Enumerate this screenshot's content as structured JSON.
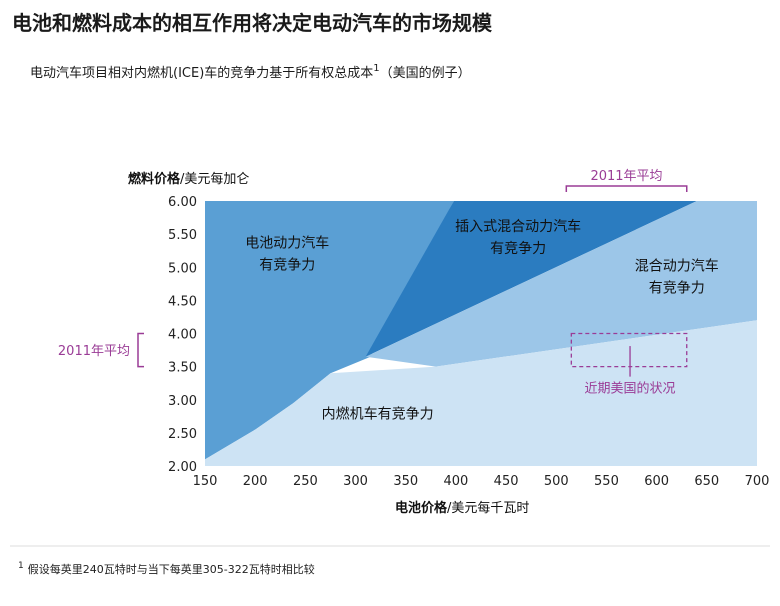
{
  "title": "电池和燃料成本的相互作用将决定电动汽车的市场规模",
  "subtitle": "电动汽车项目相对内燃机(ICE)车的竞争力基于所有权总成本",
  "subtitle_sup": "1",
  "subtitle_suffix": "（美国的例子）",
  "footnote_sup": "1",
  "footnote": "假设每英里240瓦特时与当下每英里305-322瓦特时相比较",
  "colors": {
    "ev": "#5a9fd4",
    "phev": "#2b7cc0",
    "hybrid": "#9cc6e8",
    "ice": "#cde3f4",
    "annotation": "#9a3c96"
  },
  "chart_data": {
    "type": "area",
    "xlabel_bold": "电池价格",
    "xlabel_rest": "/美元每千瓦时",
    "ylabel_bold": "燃料价格",
    "ylabel_rest": "/美元每加仑",
    "xlim": [
      150,
      700
    ],
    "ylim": [
      2.0,
      6.0
    ],
    "x_ticks": [
      "150",
      "200",
      "250",
      "300",
      "350",
      "400",
      "450",
      "500",
      "550",
      "600",
      "650",
      "700"
    ],
    "y_ticks": [
      "2.00",
      "2.50",
      "3.00",
      "3.50",
      "4.00",
      "4.50",
      "5.00",
      "5.50",
      "6.00"
    ],
    "regions": [
      {
        "name": "电动汽车竞争",
        "label_lines": [
          "电池动力汽车",
          "有竞争力"
        ],
        "label_at": [
          232,
          5.3
        ],
        "polygon": [
          [
            150,
            6.0
          ],
          [
            150,
            2.1
          ],
          [
            200,
            2.55
          ],
          [
            238,
            2.95
          ],
          [
            275,
            3.4
          ],
          [
            315,
            3.65
          ],
          [
            398,
            6.0
          ]
        ]
      },
      {
        "name": "插电式混合动力汽车具有竞争力",
        "label_lines": [
          "插入式混合动力汽车",
          "有竞争力"
        ],
        "label_at": [
          462,
          5.55
        ],
        "polygon": [
          [
            398,
            6.0
          ],
          [
            640,
            6.0
          ],
          [
            310,
            3.65
          ]
        ]
      },
      {
        "name": "混合动力汽车竞争",
        "label_lines": [
          "混合动力汽车",
          "有竞争力"
        ],
        "label_at": [
          620,
          4.95
        ],
        "polygon": [
          [
            640,
            6.0
          ],
          [
            700,
            6.0
          ],
          [
            700,
            4.2
          ],
          [
            380,
            3.5
          ],
          [
            310,
            3.65
          ]
        ]
      },
      {
        "name": "内燃机汽车竞争",
        "label_lines": [
          "内燃机车有竞争力"
        ],
        "label_at": [
          322,
          2.72
        ],
        "polygon": [
          [
            150,
            2.1
          ],
          [
            200,
            2.55
          ],
          [
            238,
            2.95
          ],
          [
            275,
            3.4
          ],
          [
            380,
            3.5
          ],
          [
            700,
            4.2
          ],
          [
            700,
            2.0
          ],
          [
            150,
            2.0
          ]
        ]
      }
    ],
    "annotations": {
      "avg_battery_label": "2011年平均",
      "avg_battery_range": [
        510,
        630
      ],
      "avg_fuel_label": "2011年平均",
      "avg_fuel_range": [
        3.5,
        4.0
      ],
      "current_us_label": "近期美国的状况",
      "current_us_box": [
        [
          515,
          3.5
        ],
        [
          630,
          4.0
        ]
      ]
    }
  }
}
